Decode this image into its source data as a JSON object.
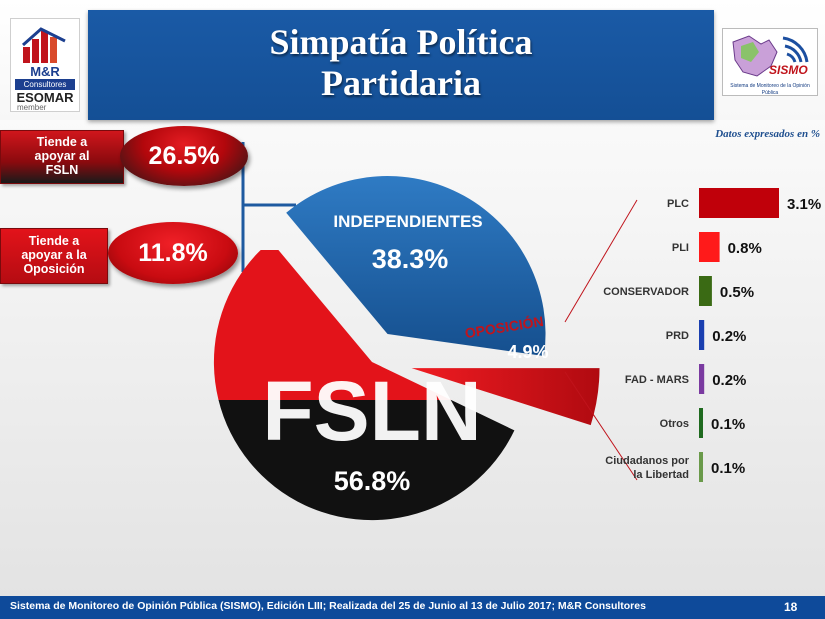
{
  "header": {
    "title": "Simpatía  Política\nPartidaria",
    "logo_left": {
      "name": "M&R",
      "subtitle": "Consultores",
      "esomar": "ESOMAR",
      "member": "member"
    },
    "logo_right": {
      "name": "SISMO",
      "subtitle": "Sistema de Monitoreo de la Opinión Pública"
    }
  },
  "unit_note": "Datos expresados en  %",
  "callouts": [
    {
      "label": "Tiende a\napoyar al\nFSLN",
      "value": "26.5%"
    },
    {
      "label": "Tiende a\napoyar a la\nOposición",
      "value": "11.8%"
    }
  ],
  "footer": {
    "text": "Sistema de Monitoreo de Opinión Pública (SISMO), Edición LIII; Realizada del 25 de Junio al 13 de Julio 2017; M&R Consultores",
    "page": "18"
  },
  "colors": {
    "red": "#e3131a",
    "black": "#111111",
    "blue": "#1e63a8"
  },
  "chart_data": [
    {
      "type": "pie",
      "title": "",
      "categories": [
        "FSLN",
        "INDEPENDIENTES",
        "OPOSICIÓN"
      ],
      "values": [
        56.8,
        38.3,
        4.9
      ],
      "labels": [
        "56.8%",
        "38.3%",
        "4.9%"
      ],
      "fsln_watermark": "FSLN"
    },
    {
      "type": "bar",
      "title": "",
      "orientation": "horizontal",
      "categories": [
        "PLC",
        "PLI",
        "CONSERVADOR",
        "PRD",
        "FAD - MARS",
        "Otros",
        "Ciudadanos por\nla Libertad"
      ],
      "values": [
        3.1,
        0.8,
        0.5,
        0.2,
        0.2,
        0.1,
        0.1
      ],
      "labels": [
        "3.1%",
        "0.8%",
        "0.5%",
        "0.2%",
        "0.2%",
        "0.1%",
        "0.1%"
      ],
      "colors": [
        "#c0000a",
        "#ff1a1a",
        "#3a6a14",
        "#1a3fb0",
        "#7a3aa0",
        "#1f6a1f",
        "#6a9a4a"
      ],
      "xlim": [
        0,
        3.1
      ]
    }
  ]
}
